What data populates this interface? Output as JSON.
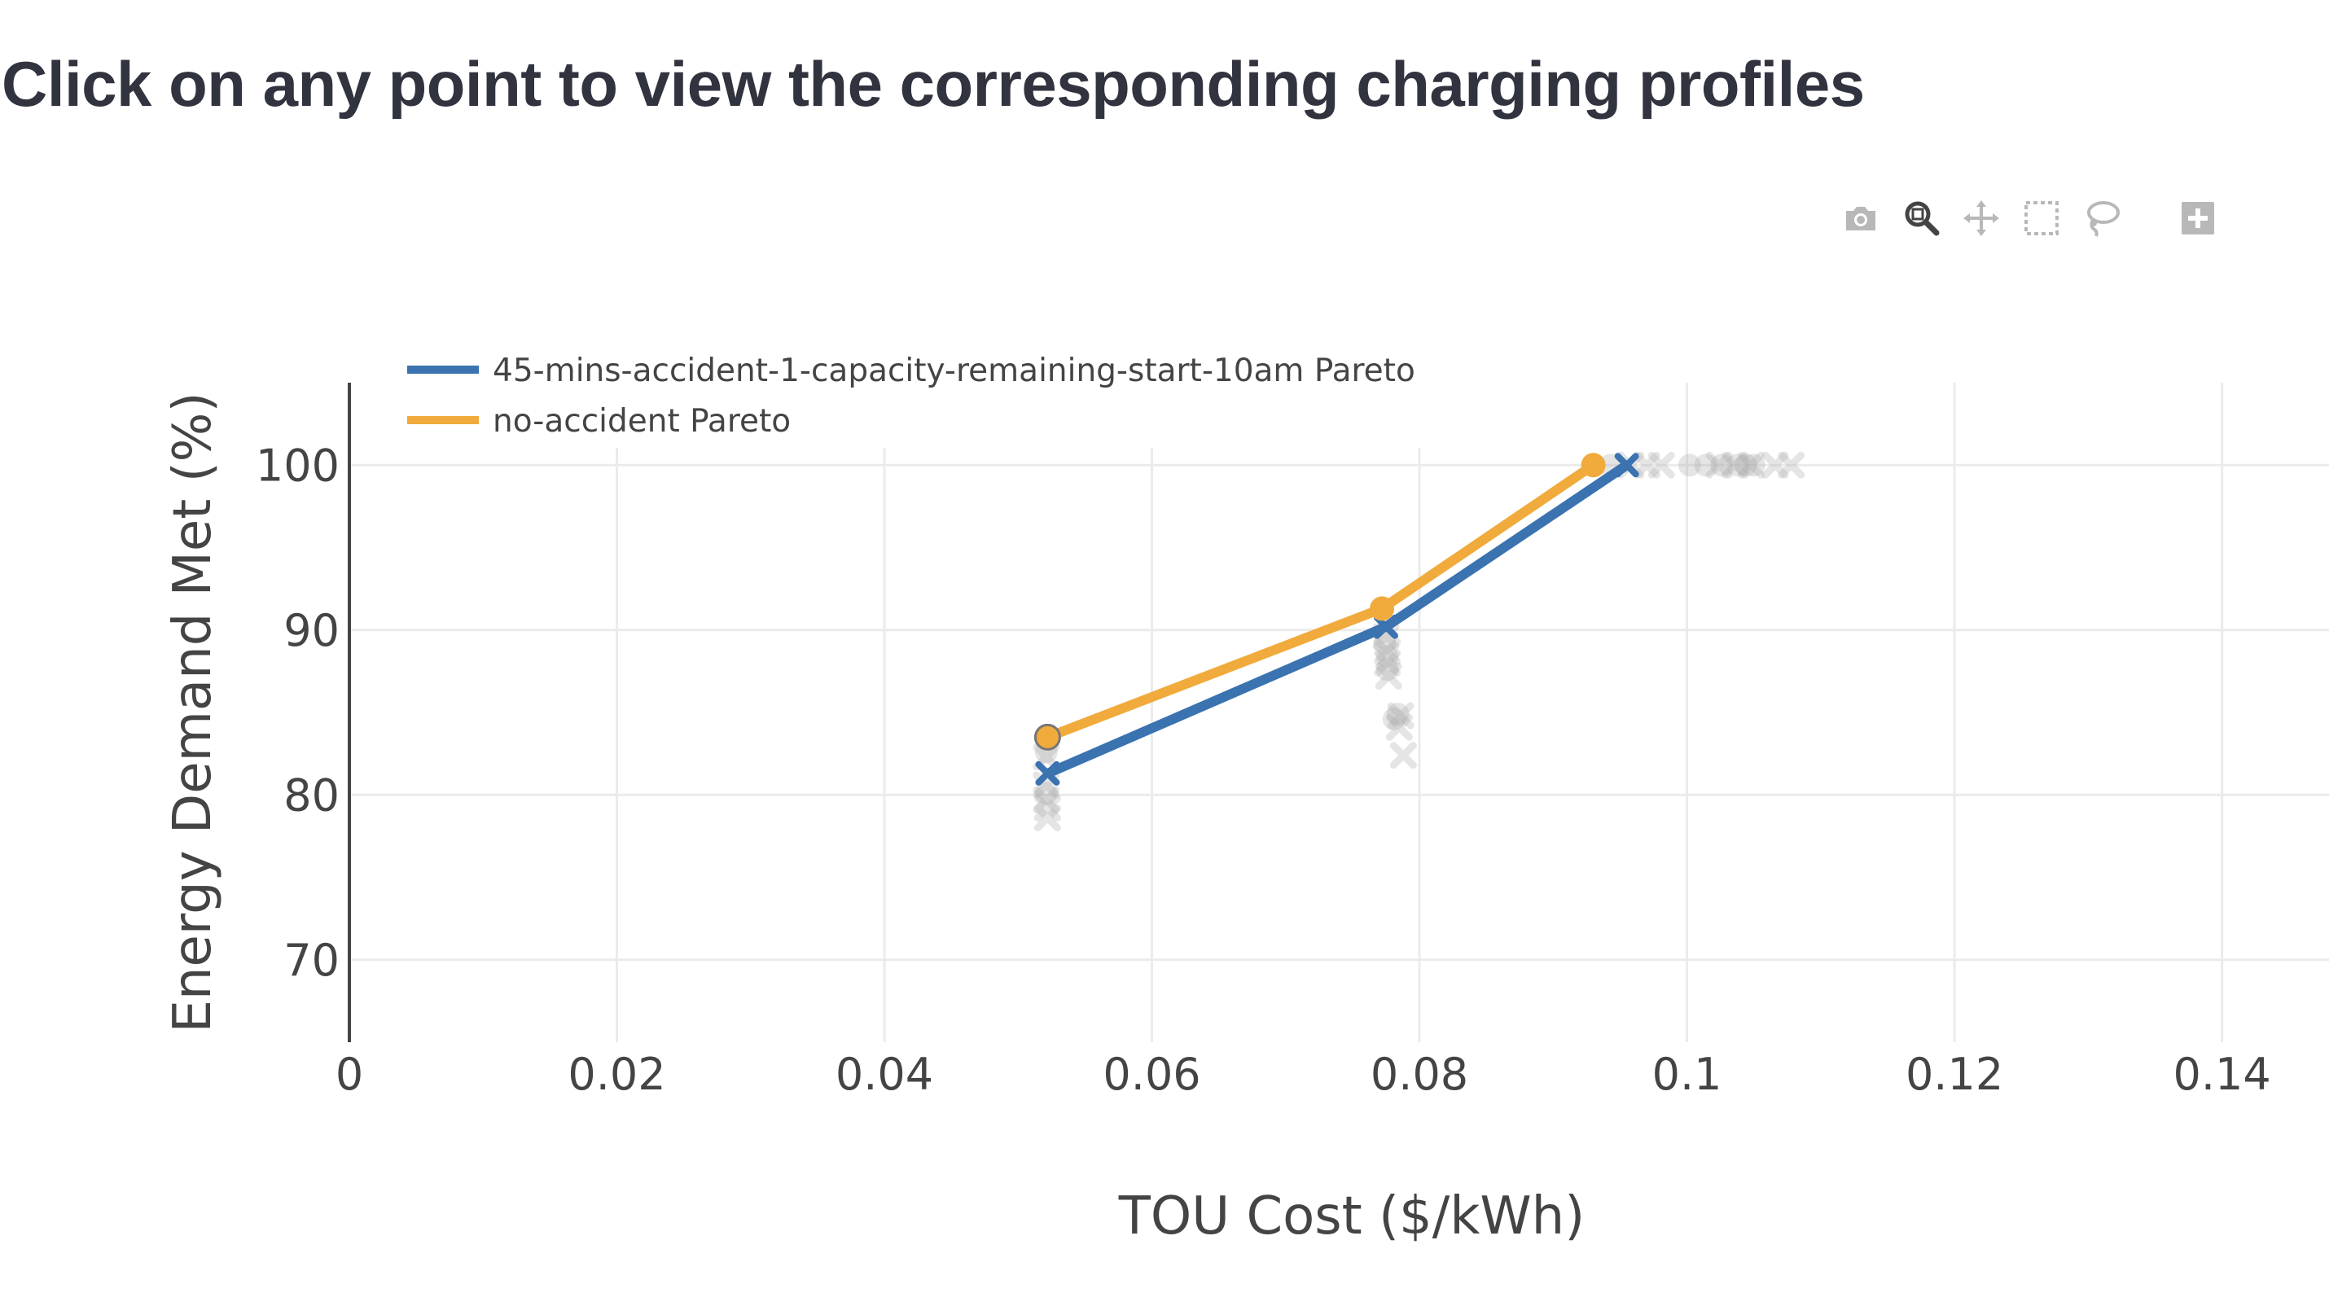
{
  "header": {
    "title": "Click on any point to view the corresponding charging profiles"
  },
  "modebar": {
    "buttons": [
      {
        "name": "camera-icon",
        "title": "Download plot as a png",
        "active": false
      },
      {
        "name": "zoom-icon",
        "title": "Zoom",
        "active": true
      },
      {
        "name": "pan-icon",
        "title": "Pan",
        "active": false
      },
      {
        "name": "box-select-icon",
        "title": "Box Select",
        "active": false
      },
      {
        "name": "lasso-select-icon",
        "title": "Lasso Select",
        "active": false
      },
      {
        "name": "zoom-in-icon",
        "title": "Zoom in",
        "active": false
      }
    ]
  },
  "chart_data": {
    "type": "scatter",
    "title": "",
    "xlabel": "TOU Cost ($/kWh)",
    "ylabel": "Energy Demand Met (%)",
    "xlim": [
      0,
      0.148
    ],
    "ylim": [
      65,
      105
    ],
    "xticks": [
      {
        "value": 0,
        "label": "0"
      },
      {
        "value": 0.02,
        "label": "0.02"
      },
      {
        "value": 0.04,
        "label": "0.04"
      },
      {
        "value": 0.06,
        "label": "0.06"
      },
      {
        "value": 0.08,
        "label": "0.08"
      },
      {
        "value": 0.1,
        "label": "0.1"
      },
      {
        "value": 0.12,
        "label": "0.12"
      },
      {
        "value": 0.14,
        "label": "0.14"
      }
    ],
    "yticks": [
      {
        "value": 70,
        "label": "70"
      },
      {
        "value": 80,
        "label": "80"
      },
      {
        "value": 90,
        "label": "90"
      },
      {
        "value": 100,
        "label": "100"
      }
    ],
    "grid": true,
    "legend_position": "top-left",
    "series": [
      {
        "name": "45-mins-accident-1-capacity-remaining-start-10am Pareto",
        "color": "#3b73b1",
        "marker": "x",
        "mode": "lines+markers",
        "x": [
          0.0522,
          0.0775,
          0.0955
        ],
        "y": [
          81.3,
          90.2,
          100
        ]
      },
      {
        "name": "no-accident Pareto",
        "color": "#f0ab3c",
        "marker": "circle",
        "mode": "lines+markers",
        "x": [
          0.0522,
          0.0772,
          0.093
        ],
        "y": [
          83.5,
          91.3,
          100
        ]
      }
    ],
    "background_points": {
      "color": "#aaaaaa",
      "opacity": 0.3,
      "x_markers": {
        "x": [
          0.0521,
          0.0521,
          0.0521,
          0.0522,
          0.0522,
          0.0775,
          0.0776,
          0.0776,
          0.0777,
          0.0786,
          0.0788,
          0.0785,
          0.0958,
          0.097,
          0.0981,
          0.1024,
          0.1036,
          0.1048,
          0.1066,
          0.1078
        ],
        "y": [
          82.3,
          80.6,
          79.7,
          79.2,
          78.6,
          89.6,
          88.7,
          88.0,
          87.2,
          84.8,
          82.4,
          84.1,
          100,
          100,
          100,
          100,
          100,
          100,
          100,
          100
        ]
      },
      "circle_markers": {
        "x": [
          0.0521,
          0.0521,
          0.0774,
          0.0776,
          0.0776,
          0.0781,
          0.0784,
          0.0943,
          0.1002,
          0.1014,
          0.1026,
          0.1038,
          0.1044,
          0.105
        ],
        "y": [
          82.6,
          80.1,
          89.2,
          88.4,
          87.6,
          84.6,
          84.9,
          100,
          100,
          100,
          100,
          100,
          100,
          100
        ]
      }
    }
  }
}
